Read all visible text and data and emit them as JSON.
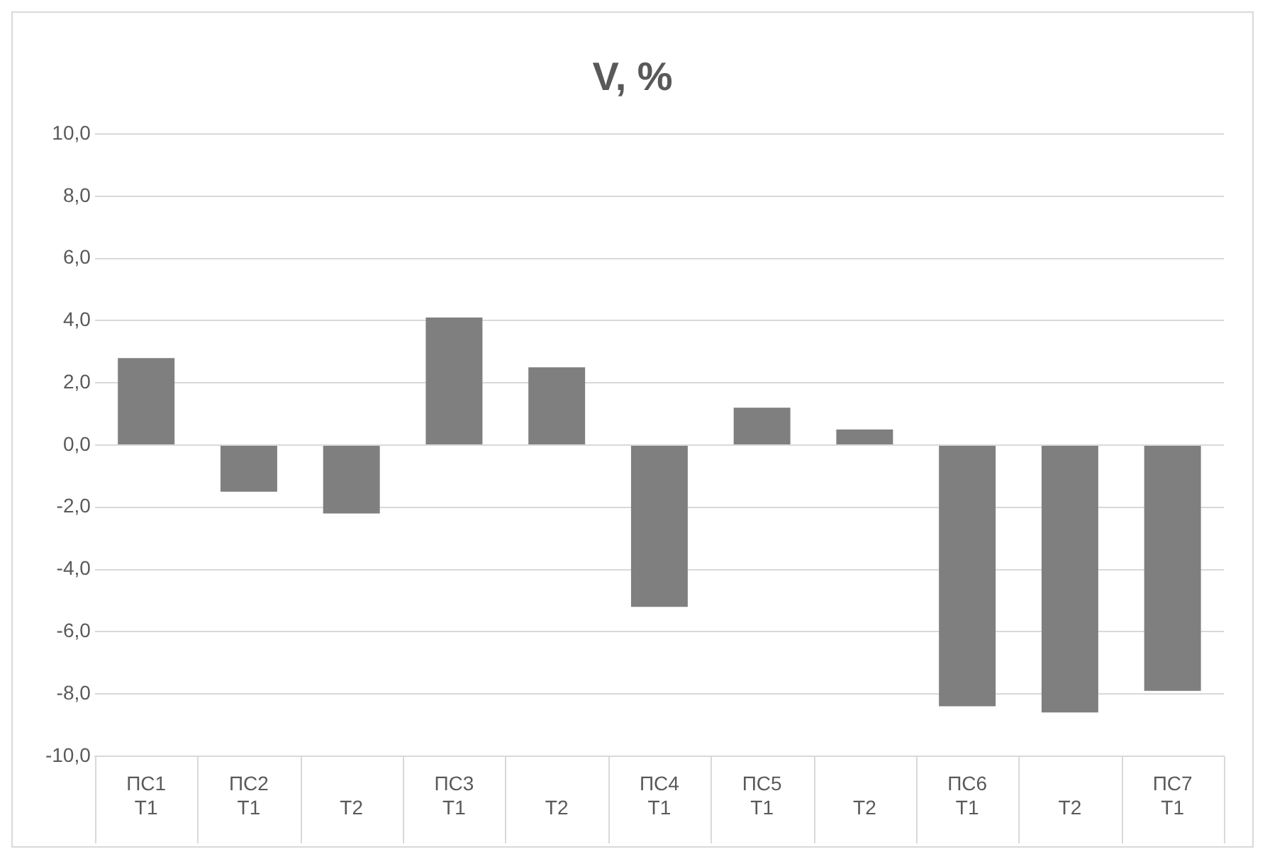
{
  "chart_data": {
    "type": "bar",
    "title": "V, %",
    "categories": [
      "ПС1\nT1",
      "ПС2\nT1",
      "T2",
      "ПС3\nT1",
      "T2",
      "ПС4\nT1",
      "ПС5\nT1",
      "T2",
      "ПС6\nT1",
      "T2",
      "ПС7\nT1"
    ],
    "values": [
      2.8,
      -1.5,
      -2.2,
      4.1,
      2.5,
      -5.2,
      1.2,
      0.5,
      -8.4,
      -8.6,
      -7.9
    ],
    "color": "#7f7f7f",
    "ylim": [
      -10,
      10
    ],
    "yticks": [
      {
        "value": -10,
        "label": "-10,0"
      },
      {
        "value": -8,
        "label": "-8,0"
      },
      {
        "value": -6,
        "label": "-6,0"
      },
      {
        "value": -4,
        "label": "-4,0"
      },
      {
        "value": -2,
        "label": "-2,0"
      },
      {
        "value": 0,
        "label": "0,0"
      },
      {
        "value": 2,
        "label": "2,0"
      },
      {
        "value": 4,
        "label": "4,0"
      },
      {
        "value": 6,
        "label": "6,0"
      },
      {
        "value": 8,
        "label": "8,0"
      },
      {
        "value": 10,
        "label": "10,0"
      }
    ],
    "grid": "y",
    "legend": false
  }
}
